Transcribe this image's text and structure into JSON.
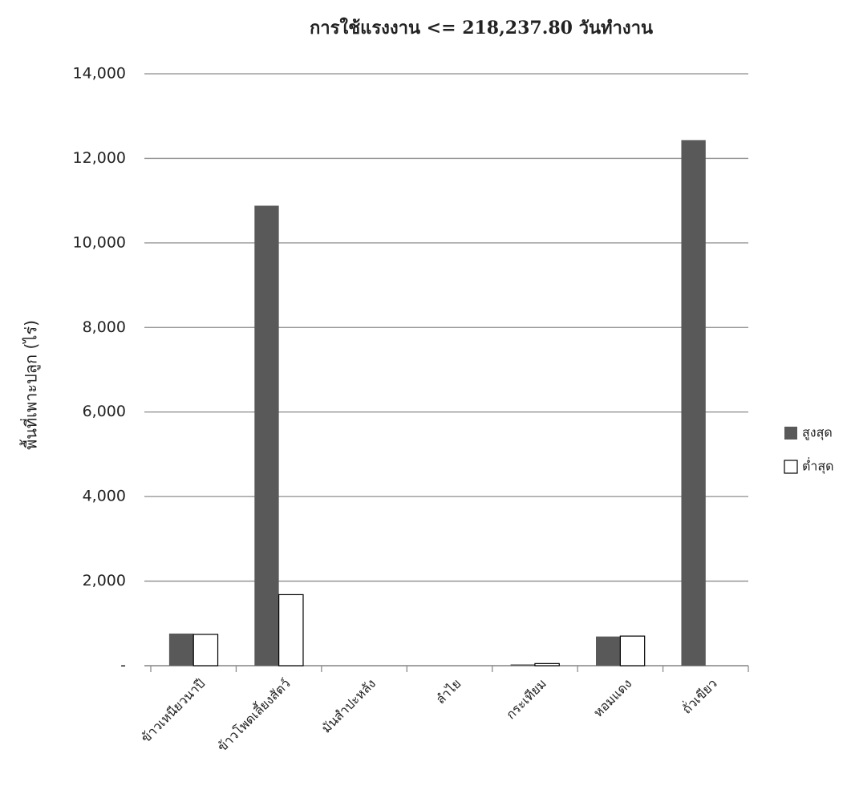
{
  "chart_data": {
    "type": "bar",
    "title": "การใช้แรงงาน <= 218,237.80 วันทำงาน",
    "y_label": "พื้นที่เพาะปลูก (ไร่)",
    "categories": [
      "ข้าวเหนียวนาปี",
      "ข้าวโพดเลี้ยงสัตว์",
      "มันสำปะหลัง",
      "ลำไย",
      "กระเทียม",
      "หอมแดง",
      "ถั่วเขียว"
    ],
    "series": [
      {
        "name": "สูงสุด",
        "color": "#595959",
        "values": [
          760,
          10880,
          0,
          0,
          30,
          690,
          12430
        ]
      },
      {
        "name": "ต่ำสุด",
        "color": "#ffffff",
        "values": [
          740,
          1680,
          0,
          0,
          50,
          700,
          0
        ]
      }
    ],
    "ylim": [
      0,
      14000
    ],
    "yticks": [
      {
        "value": 0,
        "label": "-"
      },
      {
        "value": 2000,
        "label": "2,000"
      },
      {
        "value": 4000,
        "label": "4,000"
      },
      {
        "value": 6000,
        "label": "6,000"
      },
      {
        "value": 8000,
        "label": "8,000"
      },
      {
        "value": 10000,
        "label": "10,000"
      },
      {
        "value": 12000,
        "label": "12,000"
      },
      {
        "value": 14000,
        "label": "14,000"
      }
    ],
    "grid": true,
    "legend": "right"
  }
}
